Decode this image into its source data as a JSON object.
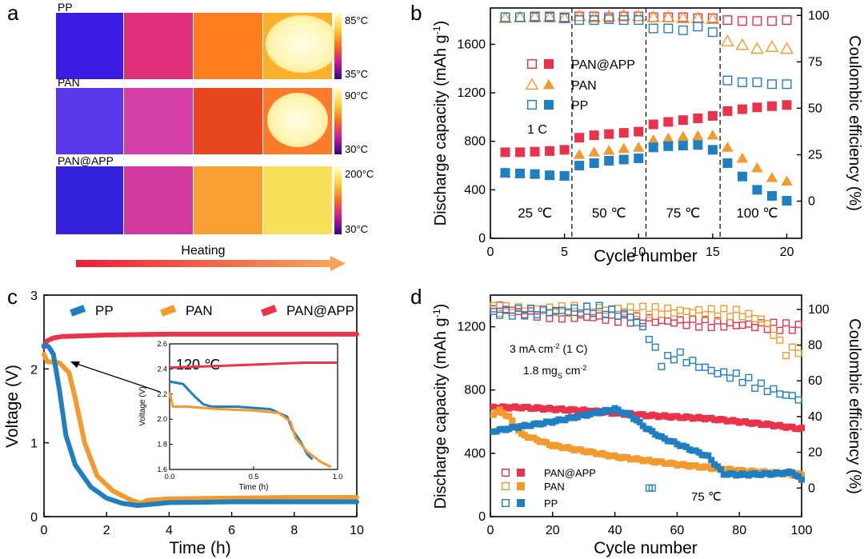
{
  "panel_letters": [
    "a",
    "b",
    "c",
    "d"
  ],
  "colors": {
    "pan_app": "#e8334a",
    "pan": "#f39a2e",
    "pp": "#1f7fc0",
    "arrow_start": "#e8203a",
    "arrow_end": "#f5a25a"
  },
  "panel_a": {
    "rows": [
      {
        "label": "PP",
        "scale_max": "85°C",
        "scale_min": "35°C"
      },
      {
        "label": "PAN",
        "scale_max": "90°C",
        "scale_min": "30°C"
      },
      {
        "label": "PAN@APP",
        "scale_max": "200°C",
        "scale_min": "30°C"
      }
    ],
    "heating_label": "Heating"
  },
  "chart_data": [
    {
      "panel": "b",
      "type": "scatter",
      "xlabel": "Cycle number",
      "ylabel": "Discharge capacity (mAh g-1)",
      "ylabel_right": "Coulombic efficiency (%)",
      "xlim": [
        0,
        21
      ],
      "ylim": [
        0,
        1900
      ],
      "ylim_right": [
        -20,
        104
      ],
      "xticks": [
        0,
        5,
        10,
        15,
        20
      ],
      "yticks": [
        0,
        400,
        800,
        1200,
        1600
      ],
      "yticks_right": [
        0,
        25,
        50,
        75,
        100
      ],
      "annotation": "1 C",
      "temperature_labels": [
        "25 ℃",
        "50 ℃",
        "75 ℃",
        "100 ℃"
      ],
      "dividers": [
        5.5,
        10.5,
        15.5
      ],
      "legend": [
        "PAN@APP",
        "PAN",
        "PP"
      ],
      "x": [
        1,
        2,
        3,
        4,
        5,
        6,
        7,
        8,
        9,
        10,
        11,
        12,
        13,
        14,
        15,
        16,
        17,
        18,
        19,
        20
      ],
      "series": [
        {
          "name": "PAN@APP",
          "values": [
            710,
            710,
            715,
            720,
            730,
            830,
            850,
            860,
            870,
            880,
            940,
            960,
            975,
            990,
            1010,
            1050,
            1065,
            1080,
            1090,
            1100
          ]
        },
        {
          "name": "PAN",
          "values": [
            540,
            535,
            530,
            520,
            515,
            690,
            710,
            725,
            740,
            750,
            810,
            825,
            840,
            845,
            850,
            750,
            660,
            580,
            500,
            470
          ]
        },
        {
          "name": "PP",
          "values": [
            540,
            535,
            530,
            520,
            515,
            600,
            620,
            640,
            650,
            660,
            750,
            760,
            765,
            770,
            730,
            620,
            510,
            400,
            350,
            310
          ]
        },
        {
          "name": "PAN@APP CE",
          "values": [
            99,
            99,
            99.5,
            99.5,
            99,
            99.5,
            99.5,
            99,
            99.5,
            99.5,
            99,
            99,
            99,
            98.5,
            98.5,
            97.5,
            97,
            97,
            97,
            97.5
          ]
        },
        {
          "name": "PAN CE",
          "values": [
            98.5,
            99,
            99,
            99,
            98.5,
            99.5,
            99,
            99.5,
            100,
            99.5,
            99,
            99,
            98.5,
            98.5,
            98,
            86,
            84,
            82,
            83,
            82
          ]
        },
        {
          "name": "PP CE",
          "values": [
            99,
            99,
            99,
            99,
            98.5,
            97.5,
            97.5,
            98,
            97.5,
            97.5,
            93,
            93,
            92,
            94,
            91,
            65,
            64,
            64,
            63,
            63
          ]
        }
      ]
    },
    {
      "panel": "c",
      "type": "line",
      "xlabel": "Time (h)",
      "ylabel": "Voltage (V)",
      "xlim": [
        0,
        10
      ],
      "ylim": [
        0,
        3
      ],
      "xticks": [
        0,
        2,
        4,
        6,
        8,
        10
      ],
      "yticks": [
        0,
        1,
        2,
        3
      ],
      "legend": [
        "PP",
        "PAN",
        "PAN@APP"
      ],
      "series": [
        {
          "name": "PP",
          "points": [
            [
              0,
              2.32
            ],
            [
              0.15,
              2.3
            ],
            [
              0.3,
              2.2
            ],
            [
              0.5,
              1.7
            ],
            [
              0.7,
              1.1
            ],
            [
              1,
              0.7
            ],
            [
              1.5,
              0.4
            ],
            [
              2,
              0.25
            ],
            [
              2.5,
              0.18
            ],
            [
              3,
              0.15
            ],
            [
              3.5,
              0.17
            ],
            [
              4,
              0.19
            ],
            [
              6,
              0.2
            ],
            [
              8,
              0.2
            ],
            [
              10,
              0.2
            ]
          ]
        },
        {
          "name": "PAN",
          "points": [
            [
              0,
              2.2
            ],
            [
              0.1,
              2.1
            ],
            [
              0.5,
              2.08
            ],
            [
              0.8,
              1.95
            ],
            [
              1,
              1.6
            ],
            [
              1.3,
              1.0
            ],
            [
              1.7,
              0.55
            ],
            [
              2.2,
              0.35
            ],
            [
              2.8,
              0.22
            ],
            [
              3.1,
              0.18
            ],
            [
              3.3,
              0.22
            ],
            [
              4,
              0.24
            ],
            [
              6,
              0.25
            ],
            [
              8,
              0.26
            ],
            [
              10,
              0.26
            ]
          ]
        },
        {
          "name": "PAN@APP",
          "points": [
            [
              0,
              2.3
            ],
            [
              0.1,
              2.38
            ],
            [
              0.3,
              2.42
            ],
            [
              0.6,
              2.44
            ],
            [
              2,
              2.46
            ],
            [
              4,
              2.47
            ],
            [
              6,
              2.47
            ],
            [
              8,
              2.47
            ],
            [
              10,
              2.47
            ]
          ]
        }
      ],
      "inset": {
        "annotation": "120 ℃",
        "xlabel": "Time (h)",
        "ylabel": "Voltage (V)",
        "xlim": [
          0,
          1
        ],
        "ylim": [
          1.6,
          2.6
        ],
        "xticks": [
          0,
          0.5,
          1
        ],
        "yticks": [
          1.6,
          1.8,
          2.0,
          2.2,
          2.4,
          2.6
        ],
        "series": [
          {
            "name": "PAN@APP",
            "points": [
              [
                0,
                2.41
              ],
              [
                0.2,
                2.42
              ],
              [
                0.4,
                2.43
              ],
              [
                0.6,
                2.44
              ],
              [
                0.8,
                2.45
              ],
              [
                1,
                2.45
              ]
            ]
          },
          {
            "name": "PP",
            "points": [
              [
                0,
                2.3
              ],
              [
                0.08,
                2.28
              ],
              [
                0.15,
                2.18
              ],
              [
                0.2,
                2.12
              ],
              [
                0.25,
                2.1
              ],
              [
                0.4,
                2.1
              ],
              [
                0.6,
                2.08
              ],
              [
                0.7,
                2.02
              ],
              [
                0.73,
                1.92
              ],
              [
                0.78,
                1.82
              ],
              [
                0.82,
                1.72
              ],
              [
                0.85,
                1.68
              ]
            ]
          },
          {
            "name": "PAN",
            "points": [
              [
                0,
                2.21
              ],
              [
                0.02,
                2.1
              ],
              [
                0.05,
                2.1
              ],
              [
                0.1,
                2.1
              ],
              [
                0.3,
                2.08
              ],
              [
                0.5,
                2.07
              ],
              [
                0.65,
                2.05
              ],
              [
                0.72,
                1.98
              ],
              [
                0.75,
                1.85
              ],
              [
                0.82,
                1.74
              ],
              [
                0.9,
                1.66
              ],
              [
                0.96,
                1.62
              ]
            ]
          }
        ]
      }
    },
    {
      "panel": "d",
      "type": "scatter",
      "xlabel": "Cycle number",
      "ylabel": "Discharge capacity (mAh g-1)",
      "ylabel_right": "Coulombic efficiency (%)",
      "xlim": [
        0,
        100
      ],
      "ylim": [
        0,
        1400
      ],
      "ylim_right": [
        -16,
        108
      ],
      "xticks": [
        0,
        20,
        40,
        60,
        80,
        100
      ],
      "yticks": [
        0,
        400,
        800,
        1200
      ],
      "yticks_right": [
        0,
        20,
        40,
        60,
        80,
        100
      ],
      "annotations": [
        "3 mA cm-2 (1 C)",
        "1.8 mgS cm-2",
        "75 ℃"
      ],
      "legend": [
        "PAN@APP",
        "PAN",
        "PP"
      ],
      "series": [
        {
          "name": "PAN@APP",
          "anchors": [
            [
              1,
              690
            ],
            [
              10,
              690
            ],
            [
              30,
              670
            ],
            [
              50,
              640
            ],
            [
              70,
              620
            ],
            [
              90,
              580
            ],
            [
              100,
              555
            ]
          ]
        },
        {
          "name": "PAN",
          "anchors": [
            [
              1,
              650
            ],
            [
              3,
              670
            ],
            [
              6,
              630
            ],
            [
              10,
              520
            ],
            [
              20,
              450
            ],
            [
              40,
              380
            ],
            [
              60,
              330
            ],
            [
              80,
              290
            ],
            [
              100,
              265
            ]
          ]
        },
        {
          "name": "PP",
          "anchors": [
            [
              1,
              540
            ],
            [
              10,
              570
            ],
            [
              20,
              600
            ],
            [
              30,
              640
            ],
            [
              40,
              680
            ],
            [
              45,
              640
            ],
            [
              50,
              560
            ],
            [
              55,
              500
            ],
            [
              60,
              460
            ],
            [
              70,
              380
            ],
            [
              75,
              270
            ],
            [
              80,
              265
            ],
            [
              90,
              270
            ],
            [
              97,
              280
            ],
            [
              99,
              250
            ],
            [
              100,
              230
            ]
          ]
        },
        {
          "name": "PAN@APP CE",
          "anchors": [
            [
              1,
              102
            ],
            [
              10,
              98
            ],
            [
              30,
              96
            ],
            [
              50,
              94
            ],
            [
              70,
              92
            ],
            [
              100,
              90
            ]
          ]
        },
        {
          "name": "PAN CE",
          "anchors": [
            [
              1,
              100
            ],
            [
              20,
              100
            ],
            [
              40,
              100
            ],
            [
              60,
              99
            ],
            [
              80,
              98
            ],
            [
              88,
              94
            ],
            [
              92,
              84
            ],
            [
              95,
              76
            ],
            [
              100,
              78
            ]
          ]
        },
        {
          "name": "PP CE",
          "anchors": [
            [
              1,
              98
            ],
            [
              20,
              99
            ],
            [
              35,
              100
            ],
            [
              45,
              96
            ],
            [
              50,
              88
            ],
            [
              55,
              70
            ],
            [
              60,
              75
            ],
            [
              65,
              70
            ],
            [
              72,
              65
            ],
            [
              80,
              62
            ],
            [
              85,
              58
            ],
            [
              90,
              55
            ],
            [
              95,
              52
            ],
            [
              100,
              50
            ]
          ]
        },
        {
          "name": "PP CE outlier",
          "points": [
            [
              51,
              0
            ],
            [
              52,
              0
            ]
          ]
        }
      ]
    }
  ]
}
